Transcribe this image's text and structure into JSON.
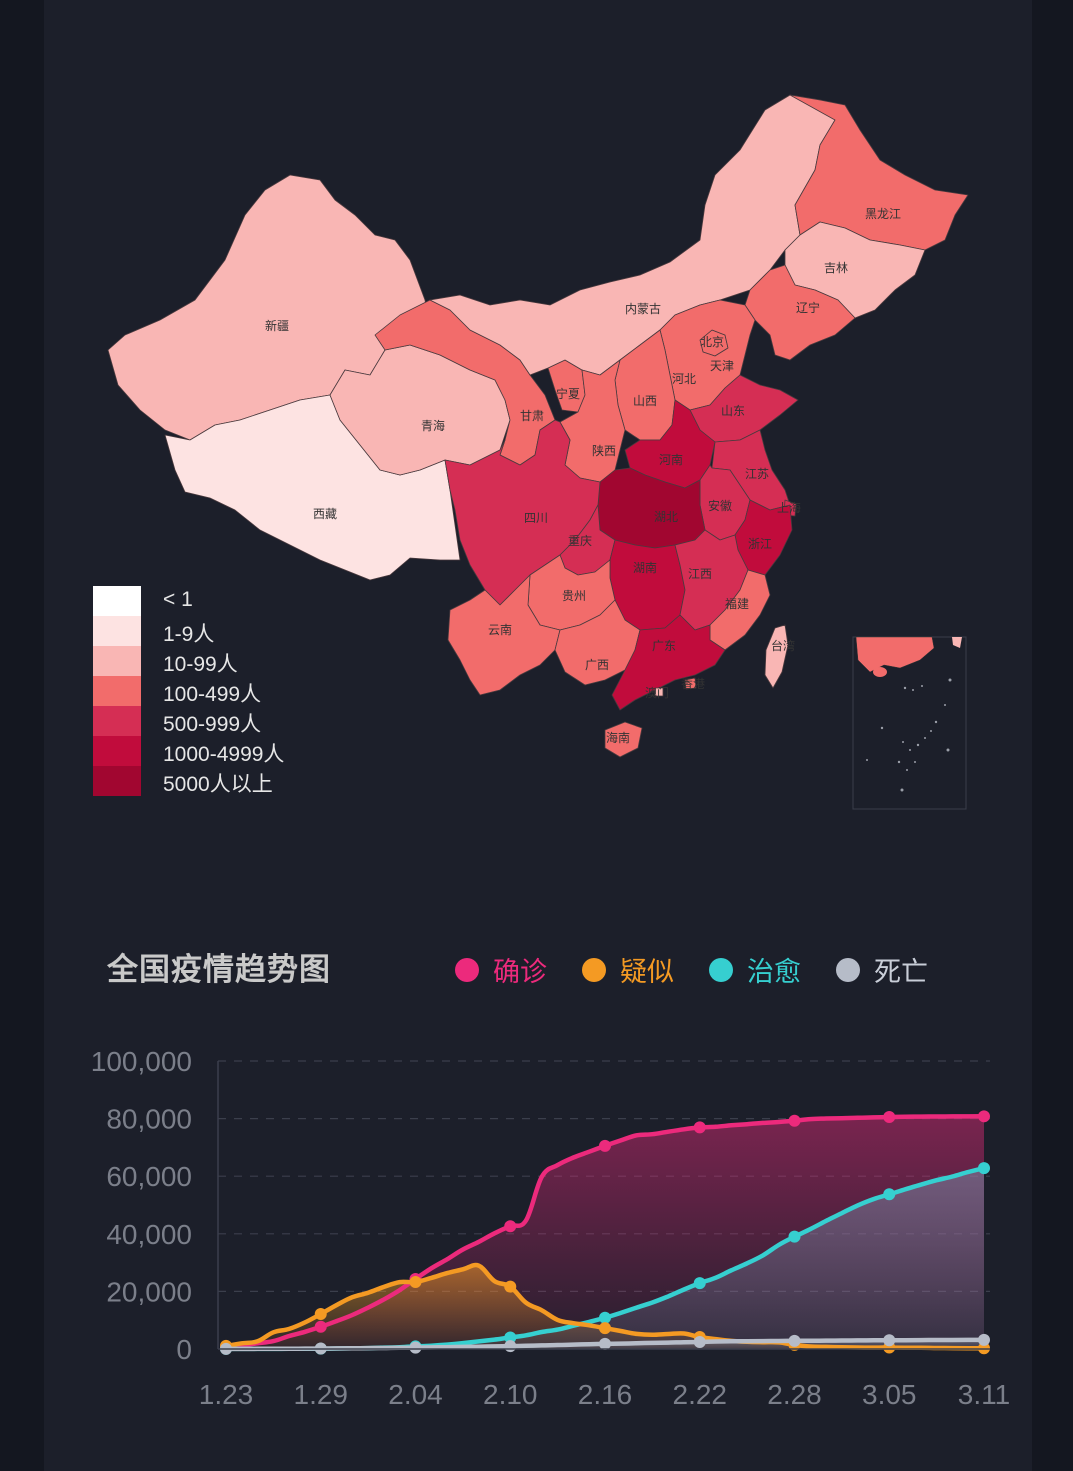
{
  "colors": {
    "bg_outer": "#141720",
    "bg_panel": "#1c1f2a",
    "confirmed": "#ec2a7c",
    "suspected": "#f49a23",
    "cured": "#36cfd0",
    "dead": "#b6bcc8"
  },
  "map": {
    "legend": [
      {
        "label": "< 1",
        "color": "#ffffff"
      },
      {
        "label": "1-9人",
        "color": "#fde3e2"
      },
      {
        "label": "10-99人",
        "color": "#f9b6b4"
      },
      {
        "label": "100-499人",
        "color": "#f26c6b"
      },
      {
        "label": "500-999人",
        "color": "#d52e54"
      },
      {
        "label": "1000-4999人",
        "color": "#c10c3c"
      },
      {
        "label": "5000人以上",
        "color": "#a10630"
      }
    ],
    "provinces": [
      {
        "name": "新疆",
        "level": 2
      },
      {
        "name": "西藏",
        "level": 1
      },
      {
        "name": "青海",
        "level": 2
      },
      {
        "name": "甘肃",
        "level": 3
      },
      {
        "name": "宁夏",
        "level": 3
      },
      {
        "name": "内蒙古",
        "level": 2
      },
      {
        "name": "黑龙江",
        "level": 3
      },
      {
        "name": "吉林",
        "level": 2
      },
      {
        "name": "辽宁",
        "level": 3
      },
      {
        "name": "北京",
        "level": 3
      },
      {
        "name": "天津",
        "level": 3
      },
      {
        "name": "河北",
        "level": 3
      },
      {
        "name": "山西",
        "level": 3
      },
      {
        "name": "陕西",
        "level": 3
      },
      {
        "name": "山东",
        "level": 4
      },
      {
        "name": "河南",
        "level": 5
      },
      {
        "name": "江苏",
        "level": 4
      },
      {
        "name": "上海",
        "level": 4
      },
      {
        "name": "安徽",
        "level": 4
      },
      {
        "name": "湖北",
        "level": 6
      },
      {
        "name": "浙江",
        "level": 5
      },
      {
        "name": "四川",
        "level": 4
      },
      {
        "name": "重庆",
        "level": 4
      },
      {
        "name": "湖南",
        "level": 5
      },
      {
        "name": "江西",
        "level": 4
      },
      {
        "name": "贵州",
        "level": 3
      },
      {
        "name": "福建",
        "level": 3
      },
      {
        "name": "云南",
        "level": 3
      },
      {
        "name": "广西",
        "level": 3
      },
      {
        "name": "广东",
        "level": 5
      },
      {
        "name": "香港",
        "level": 3
      },
      {
        "name": "澳门",
        "level": 2
      },
      {
        "name": "台湾",
        "level": 2
      },
      {
        "name": "海南",
        "level": 3
      }
    ]
  },
  "trend": {
    "title": "全国疫情趋势图",
    "legend": [
      {
        "key": "confirmed",
        "label": "确诊"
      },
      {
        "key": "suspected",
        "label": "疑似"
      },
      {
        "key": "cured",
        "label": "治愈"
      },
      {
        "key": "dead",
        "label": "死亡"
      }
    ]
  },
  "chart_data": {
    "type": "line",
    "title": "全国疫情趋势图",
    "xlabel": "",
    "ylabel": "",
    "ylim": [
      0,
      100000
    ],
    "yticks": [
      "100,000",
      "80,000",
      "60,000",
      "40,000",
      "20,000",
      "0"
    ],
    "xticks": [
      "1.23",
      "1.29",
      "2.04",
      "2.10",
      "2.16",
      "2.22",
      "2.28",
      "3.05",
      "3.11"
    ],
    "x": [
      "1.23",
      "1.24",
      "1.25",
      "1.26",
      "1.27",
      "1.28",
      "1.29",
      "1.30",
      "1.31",
      "2.01",
      "2.02",
      "2.03",
      "2.04",
      "2.05",
      "2.06",
      "2.07",
      "2.08",
      "2.09",
      "2.10",
      "2.11",
      "2.12",
      "2.13",
      "2.14",
      "2.15",
      "2.16",
      "2.17",
      "2.18",
      "2.19",
      "2.20",
      "2.21",
      "2.22",
      "2.23",
      "2.24",
      "2.25",
      "2.26",
      "2.27",
      "2.28",
      "2.29",
      "3.01",
      "3.02",
      "3.03",
      "3.04",
      "3.05",
      "3.06",
      "3.07",
      "3.08",
      "3.09",
      "3.10",
      "3.11"
    ],
    "series": [
      {
        "name": "确诊",
        "color": "#ec2a7c",
        "values": [
          830,
          1287,
          1975,
          2744,
          4515,
          5974,
          7711,
          9692,
          11791,
          14380,
          17205,
          20438,
          24324,
          28018,
          31161,
          34546,
          37198,
          40171,
          42638,
          44653,
          59804,
          63851,
          66492,
          68500,
          70548,
          72436,
          74185,
          74576,
          75465,
          76288,
          76936,
          77150,
          77658,
          78064,
          78497,
          78824,
          79251,
          79824,
          80026,
          80151,
          80270,
          80409,
          80552,
          80651,
          80695,
          80735,
          80754,
          80778,
          80793
        ]
      },
      {
        "name": "疑似",
        "color": "#f49a23",
        "values": [
          1072,
          1965,
          2684,
          5794,
          6973,
          9239,
          12167,
          15238,
          17988,
          19544,
          21558,
          23214,
          23260,
          24702,
          26359,
          27657,
          28942,
          23589,
          21675,
          16067,
          13435,
          10109,
          8969,
          8228,
          7264,
          6242,
          5248,
          4922,
          5206,
          5365,
          4148,
          3434,
          2824,
          2491,
          2358,
          2308,
          1418,
          851,
          715,
          587,
          520,
          482,
          502,
          458,
          421,
          351,
          315,
          285,
          253
        ]
      },
      {
        "name": "治愈",
        "color": "#36cfd0",
        "values": [
          34,
          38,
          49,
          51,
          60,
          103,
          124,
          171,
          243,
          328,
          475,
          632,
          892,
          1153,
          1540,
          2050,
          2649,
          3281,
          3996,
          4740,
          5911,
          6723,
          8096,
          9419,
          10844,
          12552,
          14376,
          16155,
          18264,
          20659,
          22888,
          24734,
          27323,
          29745,
          32495,
          36117,
          39002,
          41625,
          44462,
          47204,
          49856,
          52045,
          53726,
          55404,
          57065,
          58600,
          59897,
          61475,
          62793
        ]
      },
      {
        "name": "死亡",
        "color": "#b6bcc8",
        "values": [
          25,
          41,
          56,
          80,
          106,
          132,
          170,
          213,
          259,
          304,
          361,
          425,
          490,
          563,
          636,
          722,
          811,
          908,
          1016,
          1113,
          1259,
          1380,
          1523,
          1665,
          1770,
          1868,
          2004,
          2118,
          2236,
          2345,
          2442,
          2592,
          2663,
          2715,
          2744,
          2788,
          2835,
          2870,
          2912,
          2943,
          2981,
          3012,
          3042,
          3070,
          3097,
          3119,
          3136,
          3158,
          3169
        ]
      }
    ]
  }
}
